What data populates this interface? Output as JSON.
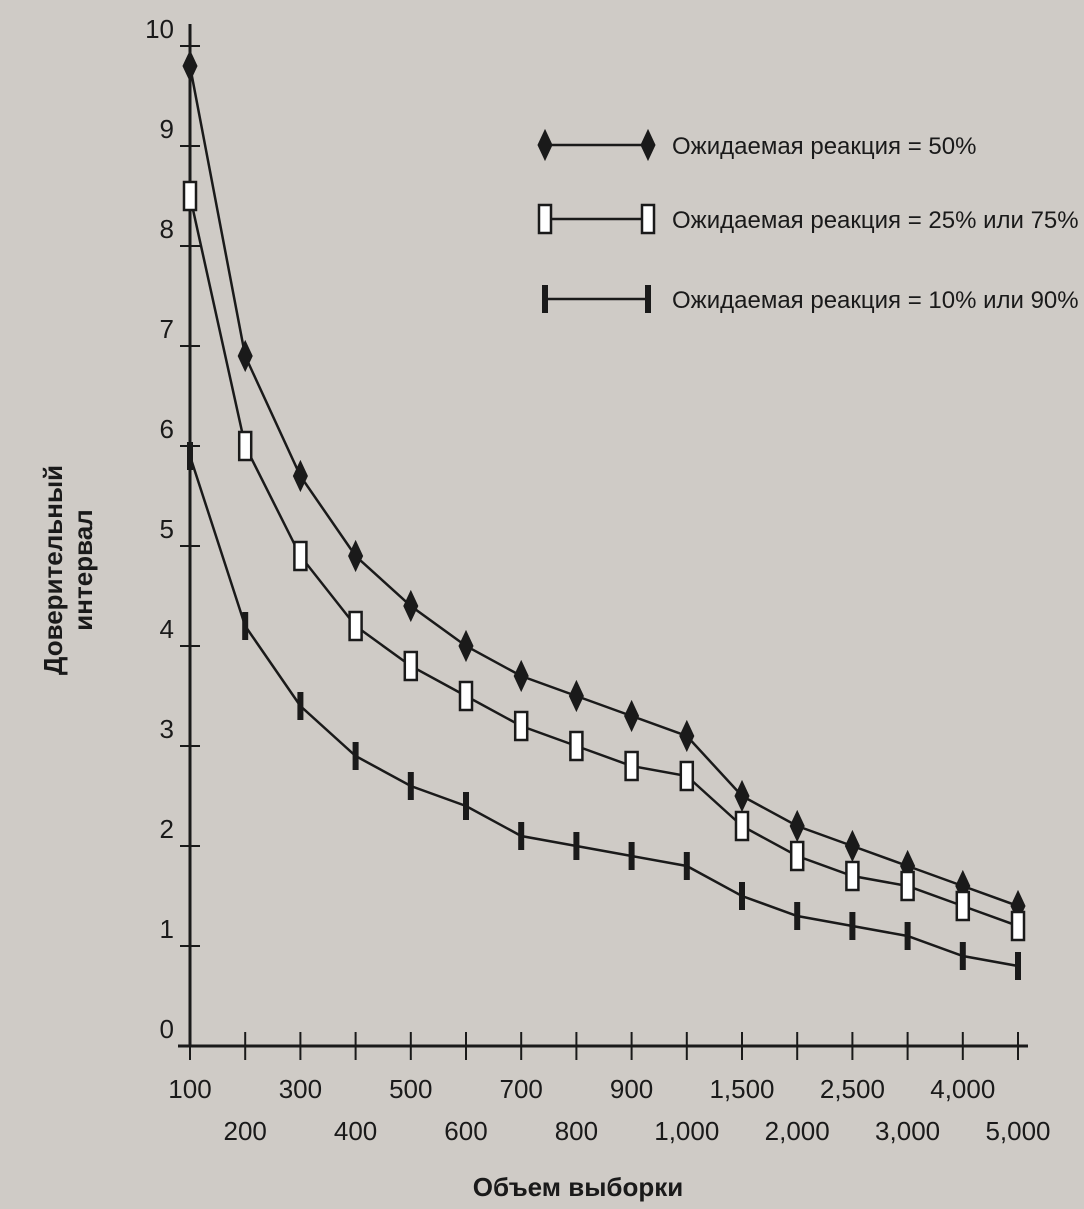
{
  "chart_data": {
    "type": "line",
    "xlabel": "Объем выборки",
    "ylabel": [
      "Доверительный",
      "интервал"
    ],
    "ylim": [
      0,
      10
    ],
    "categories": [
      "100",
      "200",
      "300",
      "400",
      "500",
      "600",
      "700",
      "800",
      "900",
      "1,000",
      "1,500",
      "2,000",
      "2,500",
      "3,000",
      "4,000",
      "5,000"
    ],
    "yticks": [
      "0",
      "1",
      "2",
      "3",
      "4",
      "5",
      "6",
      "7",
      "8",
      "9",
      "10"
    ],
    "grid": false,
    "legend_position": "top-right",
    "series": [
      {
        "name": "Ожидаемая реакция = 50%",
        "marker": "diamond",
        "values": [
          9.8,
          6.9,
          5.7,
          4.9,
          4.4,
          4.0,
          3.7,
          3.5,
          3.3,
          3.1,
          2.5,
          2.2,
          2.0,
          1.8,
          1.6,
          1.4
        ]
      },
      {
        "name": "Ожидаемая реакция = 25% или 75%",
        "marker": "open-rect",
        "values": [
          8.5,
          6.0,
          4.9,
          4.2,
          3.8,
          3.5,
          3.2,
          3.0,
          2.8,
          2.7,
          2.2,
          1.9,
          1.7,
          1.6,
          1.4,
          1.2
        ]
      },
      {
        "name": "Ожидаемая реакция = 10% или 90%",
        "marker": "bar",
        "values": [
          5.9,
          4.2,
          3.4,
          2.9,
          2.6,
          2.4,
          2.1,
          2.0,
          1.9,
          1.8,
          1.5,
          1.3,
          1.2,
          1.1,
          0.9,
          0.8
        ]
      }
    ]
  },
  "colors": {
    "ink": "#1a1a1a",
    "background": "#cfcbc6"
  }
}
